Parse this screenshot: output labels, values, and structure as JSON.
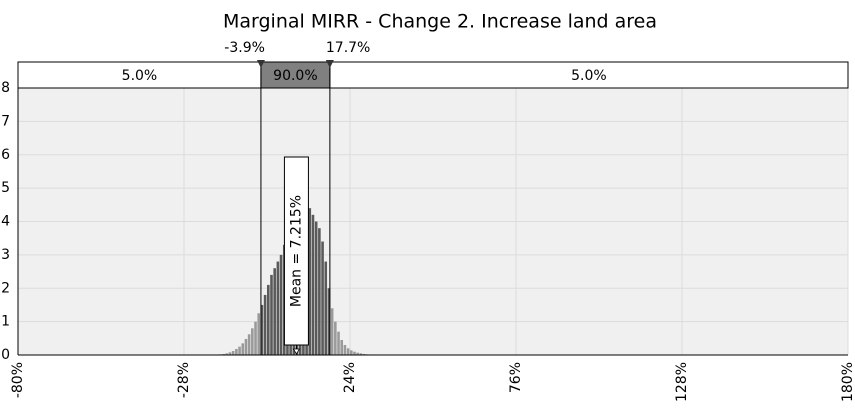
{
  "chart_data": {
    "type": "histogram",
    "title": "Marginal MIRR - Change 2. Increase land area",
    "bins": [
      -17,
      -16,
      -15,
      -14,
      -13,
      -12,
      -11,
      -10,
      -9,
      -8,
      -7,
      -6,
      -5,
      -4,
      -3,
      -2,
      -1,
      0,
      1,
      2,
      3,
      4,
      5,
      6,
      7,
      8,
      9,
      10,
      11,
      12,
      13,
      14,
      15,
      16,
      17,
      18,
      19,
      20,
      21,
      22,
      23,
      24,
      25,
      26,
      27,
      28,
      29,
      30,
      31,
      32,
      33
    ],
    "values": [
      0.02,
      0.03,
      0.05,
      0.08,
      0.12,
      0.18,
      0.25,
      0.35,
      0.48,
      0.62,
      0.8,
      1.0,
      1.25,
      1.5,
      1.8,
      2.1,
      2.4,
      2.6,
      2.8,
      3.0,
      3.3,
      3.6,
      3.9,
      4.2,
      4.4,
      4.5,
      4.5,
      4.4,
      4.4,
      4.2,
      4.0,
      3.8,
      3.4,
      2.8,
      2.0,
      1.4,
      1.0,
      0.7,
      0.45,
      0.3,
      0.2,
      0.14,
      0.1,
      0.07,
      0.05,
      0.03,
      0.02,
      0.01,
      0.01,
      0.01
    ],
    "color_inside": "#5a5a5a",
    "color_outside": "#9a9a9a",
    "percentiles": [
      {
        "value": -3.9,
        "label": "-3.9%"
      },
      {
        "value": 17.7,
        "label": "17.7%"
      }
    ],
    "band_labels": [
      "5.0%",
      "90.0%",
      "5.0%"
    ],
    "mean": {
      "value": 7.215,
      "label": "Mean = 7.215%"
    },
    "xlim": [
      -80,
      180
    ],
    "xticks": [
      {
        "value": -80,
        "label": "-80%"
      },
      {
        "value": -28,
        "label": "-28%"
      },
      {
        "value": 24,
        "label": "24%"
      },
      {
        "value": 76,
        "label": "76%"
      },
      {
        "value": 128,
        "label": "128%"
      },
      {
        "value": 180,
        "label": "180%"
      }
    ],
    "ylim": [
      0,
      8
    ],
    "yticks": [
      0,
      1,
      2,
      3,
      4,
      5,
      6,
      7,
      8
    ],
    "grid": true
  }
}
